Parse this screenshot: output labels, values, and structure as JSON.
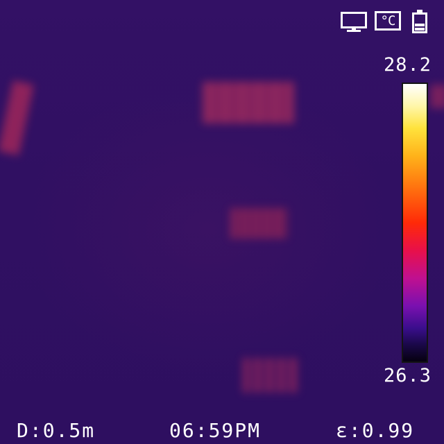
{
  "status_icons": [
    {
      "name": "monitor-icon"
    },
    {
      "name": "celsius-unit-icon",
      "label": "°C"
    },
    {
      "name": "battery-icon"
    }
  ],
  "scale": {
    "max": "28.2",
    "min": "26.3",
    "palette": "iron"
  },
  "readouts": {
    "distance": "D:0.5m",
    "time": "06:59PM",
    "emissivity": "ε:0.99"
  }
}
